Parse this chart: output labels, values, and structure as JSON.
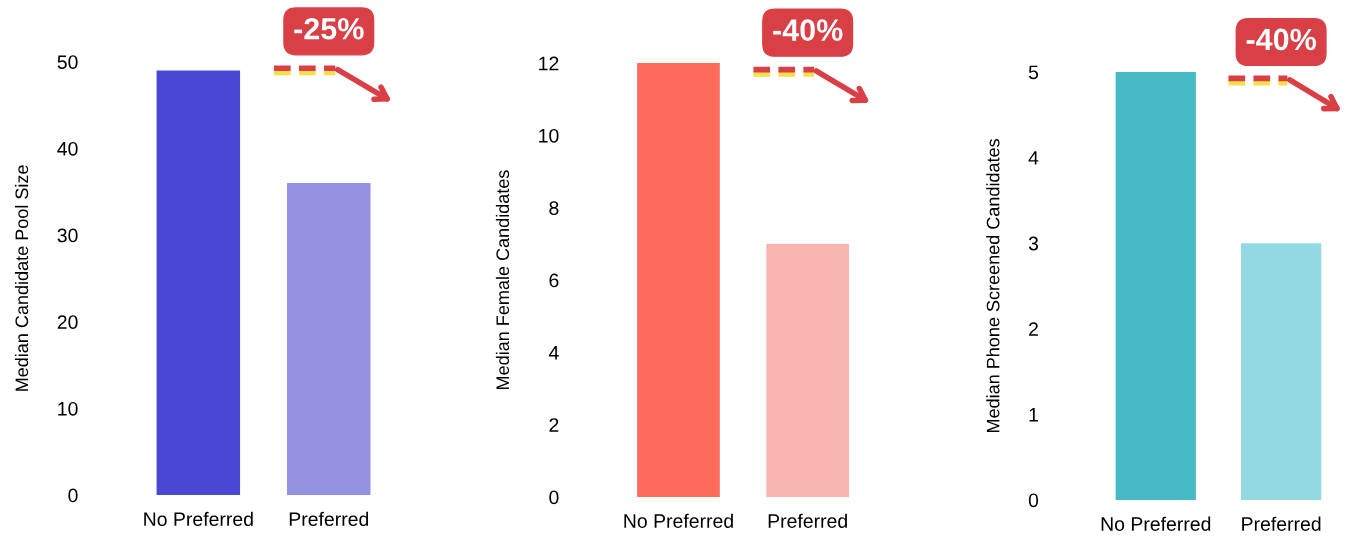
{
  "chart_data": [
    {
      "type": "bar",
      "categories": [
        "No Preferred",
        "Preferred"
      ],
      "values": [
        49,
        36
      ],
      "colors": [
        "#4a47d4",
        "#9391e0"
      ],
      "ylabel": "Median Candidate Pool Size",
      "ylim": [
        0,
        50
      ],
      "yticks": [
        0,
        10,
        20,
        30,
        40,
        50
      ],
      "annotations": [
        "-25%"
      ]
    },
    {
      "type": "bar",
      "categories": [
        "No Preferred",
        "Preferred"
      ],
      "values": [
        12,
        7
      ],
      "colors": [
        "#fe6a5c",
        "#f8b4ae"
      ],
      "ylabel": "Median Female Candidates",
      "ylim": [
        0,
        12
      ],
      "yticks": [
        0,
        2,
        4,
        6,
        8,
        10,
        12
      ],
      "annotations": [
        "-40%"
      ]
    },
    {
      "type": "bar",
      "categories": [
        "No Preferred",
        "Preferred"
      ],
      "values": [
        5,
        3
      ],
      "colors": [
        "#47bbc5",
        "#92d9e1"
      ],
      "ylabel": "Median Phone Screened Candidates",
      "ylim": [
        0,
        5
      ],
      "yticks": [
        0,
        1,
        2,
        3,
        4,
        5
      ],
      "annotations": [
        "-40%"
      ]
    }
  ]
}
